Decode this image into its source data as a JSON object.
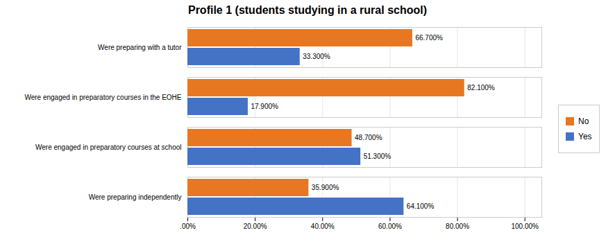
{
  "chart_data": {
    "type": "bar",
    "orientation": "horizontal",
    "title": "Profile 1 (students studying in a rural school)",
    "categories": [
      "Were preparing with a tutor",
      "Were engaged in preparatory courses in the EOHE",
      "Were engaged in preparatory courses at school",
      "Were preparing independently"
    ],
    "series": [
      {
        "name": "No",
        "color": "#E87722",
        "values": [
          66.7,
          82.1,
          48.7,
          35.9
        ],
        "value_labels": [
          "66.700%",
          "82.100%",
          "48.700%",
          "35.900%"
        ]
      },
      {
        "name": "Yes",
        "color": "#4472C4",
        "values": [
          33.3,
          17.9,
          51.3,
          64.1
        ],
        "value_labels": [
          "33.300%",
          "17.900%",
          "51.300%",
          "64.100%"
        ]
      }
    ],
    "xlim": [
      0,
      105
    ],
    "xticks": [
      {
        "value": 0,
        "label": ".00%"
      },
      {
        "value": 20,
        "label": "20.00%"
      },
      {
        "value": 40,
        "label": "40.00%"
      },
      {
        "value": 60,
        "label": "60.00%"
      },
      {
        "value": 80,
        "label": "80.00%"
      },
      {
        "value": 100,
        "label": "100.00%"
      }
    ],
    "grid": true,
    "data_labels": true,
    "legend": "right"
  }
}
